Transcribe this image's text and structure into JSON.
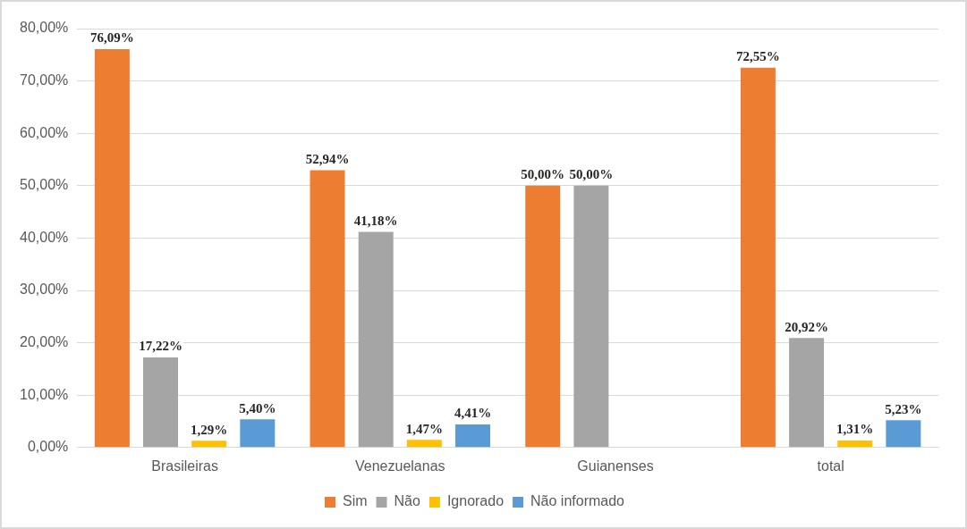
{
  "chart_data": {
    "type": "bar",
    "categories": [
      "Brasileiras",
      "Venezuelanas",
      "Guianenses",
      "total"
    ],
    "series": [
      {
        "name": "Sim",
        "color": "#ed7d31",
        "values": [
          76.09,
          52.94,
          50.0,
          72.55
        ],
        "value_labels": [
          "76,09%",
          "52,94%",
          "50,00%",
          "72,55%"
        ]
      },
      {
        "name": "Não",
        "color": "#a5a5a5",
        "values": [
          17.22,
          41.18,
          50.0,
          20.92
        ],
        "value_labels": [
          "17,22%",
          "41,18%",
          "50,00%",
          "20,92%"
        ]
      },
      {
        "name": "Ignorado",
        "color": "#ffc000",
        "values": [
          1.29,
          1.47,
          null,
          1.31
        ],
        "value_labels": [
          "1,29%",
          "1,47%",
          null,
          "1,31%"
        ]
      },
      {
        "name": "Não informado",
        "color": "#5b9bd5",
        "values": [
          5.4,
          4.41,
          null,
          5.23
        ],
        "value_labels": [
          "5,40%",
          "4,41%",
          null,
          "5,23%"
        ]
      }
    ],
    "ylim": [
      0,
      80
    ],
    "yticks": [
      {
        "value": 0,
        "label": "0,00%"
      },
      {
        "value": 10,
        "label": "10,00%"
      },
      {
        "value": 20,
        "label": "20,00%"
      },
      {
        "value": 30,
        "label": "30,00%"
      },
      {
        "value": 40,
        "label": "40,00%"
      },
      {
        "value": 50,
        "label": "50,00%"
      },
      {
        "value": 60,
        "label": "60,00%"
      },
      {
        "value": 70,
        "label": "70,00%"
      },
      {
        "value": 80,
        "label": "80,00%"
      }
    ],
    "grid": "y",
    "legend": "bottom"
  }
}
